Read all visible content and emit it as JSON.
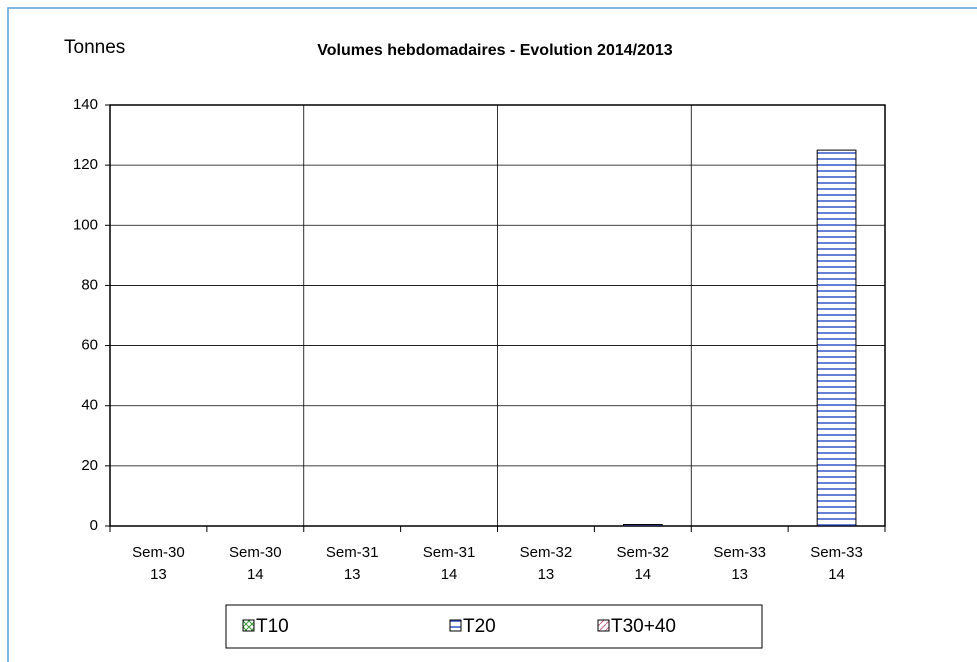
{
  "chart_data": {
    "type": "stacked_bar",
    "title": "Volumes hebdomadaires - Evolution 2014/2013",
    "y_label": "Tonnes",
    "categories": [
      "Sem-30\n13",
      "Sem-30\n14",
      "Sem-31\n13",
      "Sem-31\n14",
      "Sem-32\n13",
      "Sem-32\n14",
      "Sem-33\n13",
      "Sem-33\n14"
    ],
    "series": [
      {
        "name": "T10",
        "color": "#3a9a3a",
        "values": [
          0,
          0,
          0,
          0,
          0,
          0,
          0,
          0
        ]
      },
      {
        "name": "T20",
        "color": "#3355cc",
        "values": [
          0,
          0,
          0,
          0,
          0,
          0.5,
          0,
          125
        ]
      },
      {
        "name": "T30+40",
        "color": "#cc6688",
        "values": [
          0,
          0,
          0,
          0,
          0,
          0,
          0,
          0
        ]
      }
    ],
    "ylim": [
      0,
      140
    ],
    "yticks": [
      0,
      20,
      40,
      60,
      80,
      100,
      120,
      140
    ],
    "grid": true,
    "legend": "bottom"
  }
}
